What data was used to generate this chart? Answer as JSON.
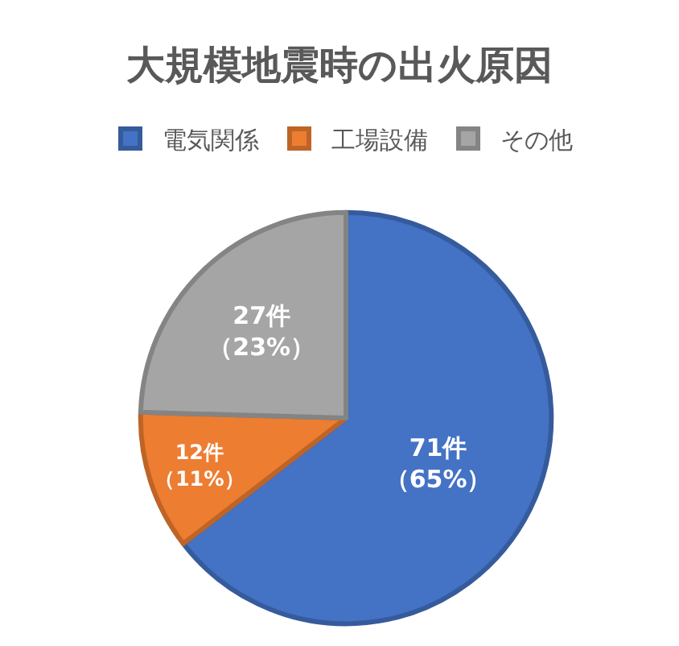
{
  "chart_data": {
    "type": "pie",
    "title": "大規模地震時の出火原因",
    "categories": [
      "電気関係",
      "工場設備",
      "その他"
    ],
    "values": [
      71,
      12,
      27
    ],
    "colors": [
      "#4472c4",
      "#ed7d31",
      "#a5a5a5"
    ],
    "value_labels": [
      "71件（65%）",
      "12件（11%）",
      "27件（23%）"
    ],
    "legend": "top"
  }
}
